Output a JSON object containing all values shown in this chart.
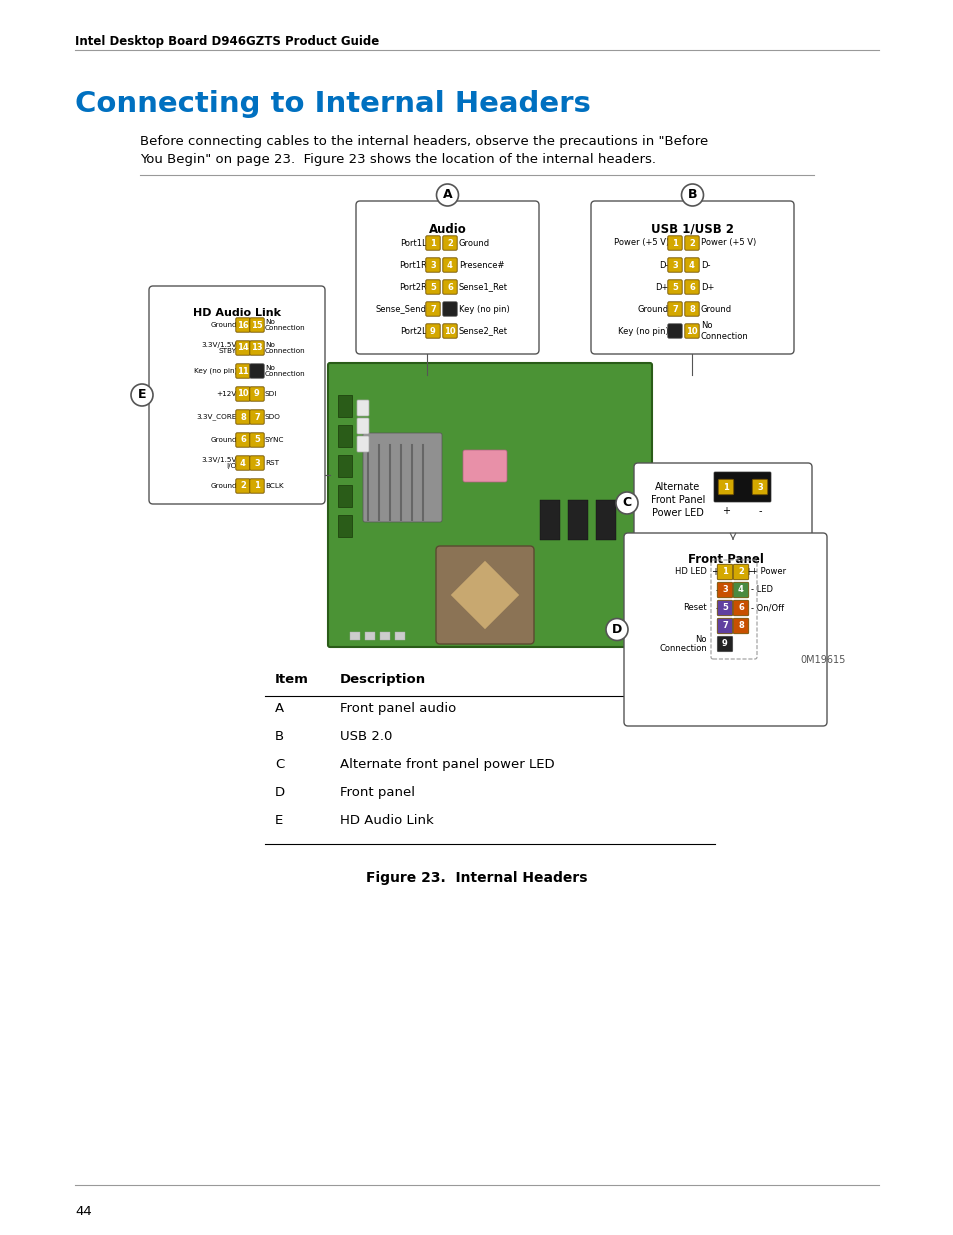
{
  "header_text": "Intel Desktop Board D946GZTS Product Guide",
  "title": "Connecting to Internal Headers",
  "title_color": "#0070C0",
  "body_text1": "Before connecting cables to the internal headers, observe the precautions in \"Before",
  "body_text2": "You Begin\" on page 23.  Figure 23 shows the location of the internal headers.",
  "page_number": "44",
  "figure_caption": "Figure 23.  Internal Headers",
  "table_headers": [
    "Item",
    "Description"
  ],
  "table_rows": [
    [
      "A",
      "Front panel audio"
    ],
    [
      "B",
      "USB 2.0"
    ],
    [
      "C",
      "Alternate front panel power LED"
    ],
    [
      "D",
      "Front panel"
    ],
    [
      "E",
      "HD Audio Link"
    ]
  ],
  "background_color": "#ffffff",
  "text_color": "#000000"
}
